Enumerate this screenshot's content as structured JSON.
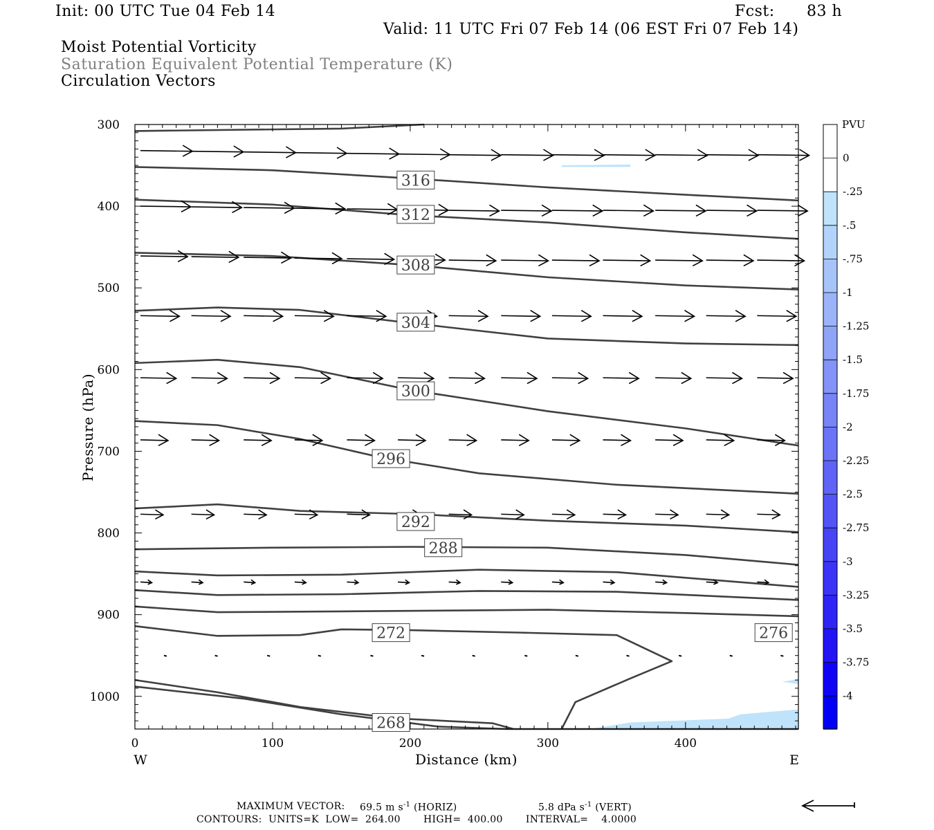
{
  "header": {
    "init": "Init: 00 UTC Tue 04 Feb 14",
    "fcst_label": "Fcst:",
    "fcst_value": "83 h",
    "valid": "Valid: 11 UTC Fri 07 Feb 14 (06 EST Fri 07 Feb 14)",
    "field1": "Moist Potential Vorticity",
    "field2": "Saturation Equivalent Potential Temperature (K)",
    "field3": "Circulation Vectors"
  },
  "footer": {
    "max_vector_label": "MAXIMUM VECTOR:",
    "max_vector_horiz": "69.5 m s",
    "horiz_tag": "(HORIZ)",
    "max_vector_vert": "5.8 dPa s",
    "vert_tag": "(VERT)",
    "exp": "-1",
    "contours": "CONTOURS:  UNITS=K  LOW=  264.00       HIGH=  400.00       INTERVAL=    4.0000"
  },
  "colors": {
    "contour": "#404040",
    "vector": "#000000",
    "pv_shade": "#bfe3fb"
  },
  "chart_data": {
    "type": "contour-cross-section",
    "xlabel": "Distance (km)",
    "ylabel": "Pressure (hPa)",
    "x_ticks": [
      0,
      100,
      200,
      300,
      400
    ],
    "y_ticks": [
      300,
      400,
      500,
      600,
      700,
      800,
      900,
      1000
    ],
    "xlim": [
      0,
      482
    ],
    "ylim": [
      300,
      1040
    ],
    "x_left_label": "W",
    "x_right_label": "E",
    "theta_es_contours": [
      {
        "label": "316",
        "label_at": [
          204,
          368
        ],
        "points": [
          [
            0,
            352
          ],
          [
            100,
            356
          ],
          [
            200,
            366
          ],
          [
            300,
            377
          ],
          [
            400,
            386
          ],
          [
            482,
            393
          ]
        ]
      },
      {
        "label": "312",
        "label_at": [
          204,
          410
        ],
        "points": [
          [
            0,
            392
          ],
          [
            100,
            398
          ],
          [
            200,
            411
          ],
          [
            300,
            420
          ],
          [
            400,
            432
          ],
          [
            482,
            440
          ]
        ]
      },
      {
        "label": "308",
        "label_at": [
          204,
          472
        ],
        "points": [
          [
            0,
            457
          ],
          [
            100,
            461
          ],
          [
            200,
            472
          ],
          [
            300,
            487
          ],
          [
            400,
            497
          ],
          [
            482,
            502
          ]
        ]
      },
      {
        "label": "304",
        "label_at": [
          204,
          542
        ],
        "points": [
          [
            0,
            528
          ],
          [
            60,
            524
          ],
          [
            120,
            527
          ],
          [
            200,
            543
          ],
          [
            300,
            562
          ],
          [
            400,
            568
          ],
          [
            482,
            570
          ]
        ]
      },
      {
        "label": "300",
        "label_at": [
          204,
          626
        ],
        "points": [
          [
            0,
            592
          ],
          [
            60,
            588
          ],
          [
            120,
            597
          ],
          [
            200,
            625
          ],
          [
            300,
            651
          ],
          [
            400,
            672
          ],
          [
            482,
            693
          ]
        ]
      },
      {
        "label": "296",
        "label_at": [
          186,
          709
        ],
        "points": [
          [
            0,
            663
          ],
          [
            60,
            668
          ],
          [
            120,
            685
          ],
          [
            180,
            708
          ],
          [
            250,
            727
          ],
          [
            350,
            741
          ],
          [
            482,
            752
          ]
        ]
      },
      {
        "label": "292",
        "label_at": [
          204,
          786
        ],
        "points": [
          [
            0,
            770
          ],
          [
            60,
            765
          ],
          [
            120,
            773
          ],
          [
            204,
            777
          ],
          [
            300,
            785
          ],
          [
            400,
            791
          ],
          [
            482,
            799
          ]
        ]
      },
      {
        "label": "288",
        "label_at": [
          224,
          818
        ],
        "points": [
          [
            0,
            820
          ],
          [
            100,
            818
          ],
          [
            200,
            817
          ],
          [
            300,
            818
          ],
          [
            400,
            827
          ],
          [
            482,
            839
          ]
        ]
      },
      {
        "label": "",
        "points": [
          [
            0,
            847
          ],
          [
            60,
            852
          ],
          [
            150,
            851
          ],
          [
            250,
            845
          ],
          [
            350,
            848
          ],
          [
            482,
            866
          ]
        ]
      },
      {
        "label": "",
        "points": [
          [
            0,
            870
          ],
          [
            60,
            876
          ],
          [
            150,
            875
          ],
          [
            250,
            871
          ],
          [
            350,
            872
          ],
          [
            482,
            882
          ]
        ]
      },
      {
        "label": "276",
        "label_at": [
          464,
          922
        ],
        "points": [
          [
            0,
            890
          ],
          [
            60,
            897
          ],
          [
            150,
            896
          ],
          [
            300,
            894
          ],
          [
            400,
            898
          ],
          [
            482,
            902
          ]
        ]
      },
      {
        "label": "272",
        "label_at": [
          186,
          922
        ],
        "points": [
          [
            0,
            914
          ],
          [
            60,
            926
          ],
          [
            120,
            925
          ],
          [
            150,
            918
          ],
          [
            200,
            919
          ],
          [
            280,
            922
          ],
          [
            350,
            925
          ],
          [
            390,
            957
          ],
          [
            360,
            978
          ],
          [
            320,
            1007
          ],
          [
            310,
            1040
          ]
        ]
      },
      {
        "label": "268",
        "label_at": [
          186,
          1032
        ],
        "points": [
          [
            0,
            980
          ],
          [
            60,
            995
          ],
          [
            120,
            1013
          ],
          [
            190,
            1027
          ],
          [
            260,
            1033
          ],
          [
            275,
            1040
          ]
        ]
      },
      {
        "label": "",
        "points": [
          [
            0,
            988
          ],
          [
            80,
            1003
          ],
          [
            150,
            1022
          ],
          [
            220,
            1037
          ],
          [
            270,
            1040
          ],
          [
            482,
            1040
          ]
        ]
      }
    ],
    "pv_shaded": [
      {
        "range": "-0.25 to 0",
        "region": "near surface east"
      }
    ],
    "vector_rows": [
      {
        "p": 337,
        "scale": 1.6
      },
      {
        "p": 405,
        "scale": 1.55
      },
      {
        "p": 466,
        "scale": 1.45
      },
      {
        "p": 534,
        "scale": 1.2
      },
      {
        "p": 610,
        "scale": 1.1
      },
      {
        "p": 686,
        "scale": 0.85
      },
      {
        "p": 777,
        "scale": 0.7
      },
      {
        "p": 860,
        "scale": 0.35
      },
      {
        "p": 950,
        "scale": 0.08
      }
    ],
    "legend": {
      "title": "PVU",
      "labels": [
        "0",
        "-.25",
        "-.5",
        "-.75",
        "-1",
        "-1.25",
        "-1.5",
        "-1.75",
        "-2",
        "-2.25",
        "-2.5",
        "-2.75",
        "-3",
        "-3.25",
        "-3.5",
        "-3.75",
        "-4"
      ],
      "colors": [
        "#ffffff",
        "#ffffff",
        "#bfe3fb",
        "#b3d4fa",
        "#a7c4f9",
        "#9bb3f8",
        "#8fa3f7",
        "#8393f7",
        "#7784f6",
        "#6b74f6",
        "#5f64f6",
        "#5354f6",
        "#4744f6",
        "#3b34f6",
        "#2f24f6",
        "#2314f6",
        "#1004f6",
        "#0000f6"
      ]
    }
  }
}
